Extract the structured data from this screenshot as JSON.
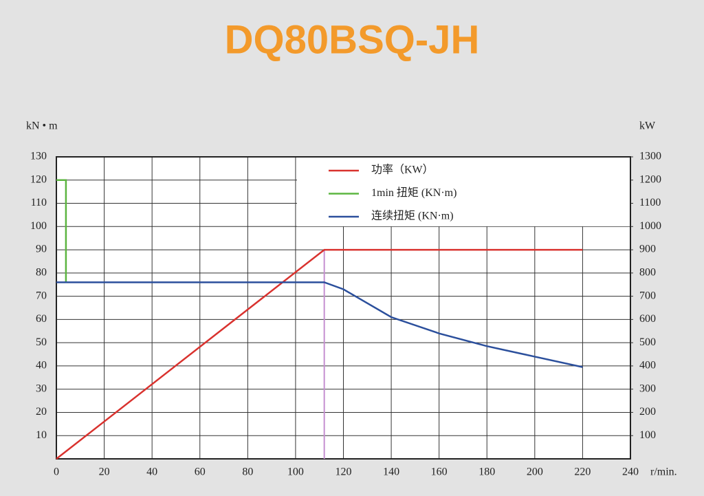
{
  "chart_data": {
    "type": "line",
    "title": "DQ80BSQ-JH",
    "y_label": "kN • m",
    "y2_label": "kW",
    "x_label": "r/min.",
    "xlim": [
      0,
      240
    ],
    "xticks": [
      0,
      20,
      40,
      60,
      80,
      100,
      120,
      140,
      160,
      180,
      200,
      220,
      240
    ],
    "ylim": [
      0,
      130
    ],
    "yticks": [
      10,
      20,
      30,
      40,
      50,
      60,
      70,
      80,
      90,
      100,
      110,
      120,
      130
    ],
    "y2lim": [
      0,
      1300
    ],
    "y2ticks": [
      100,
      200,
      300,
      400,
      500,
      600,
      700,
      800,
      900,
      1000,
      1100,
      1200,
      1300
    ],
    "grid": true,
    "legend": "upper right",
    "vline": {
      "x": 112,
      "color": "#c58fd0"
    },
    "series": [
      {
        "name": "功率（KW）",
        "color": "#d9322e",
        "axis": "y2",
        "x": [
          0,
          112,
          220
        ],
        "values": [
          0,
          900,
          900
        ]
      },
      {
        "name": "1min 扭矩 (KN·m)",
        "color": "#5cb540",
        "x": [
          0,
          4,
          4
        ],
        "values": [
          120,
          120,
          76
        ]
      },
      {
        "name": "连续扭矩 (KN·m)",
        "color": "#2b4f9c",
        "x": [
          0,
          112,
          120,
          140,
          160,
          180,
          200,
          220
        ],
        "values": [
          76,
          76,
          73,
          61,
          54,
          48.5,
          44,
          39.5
        ]
      }
    ]
  }
}
